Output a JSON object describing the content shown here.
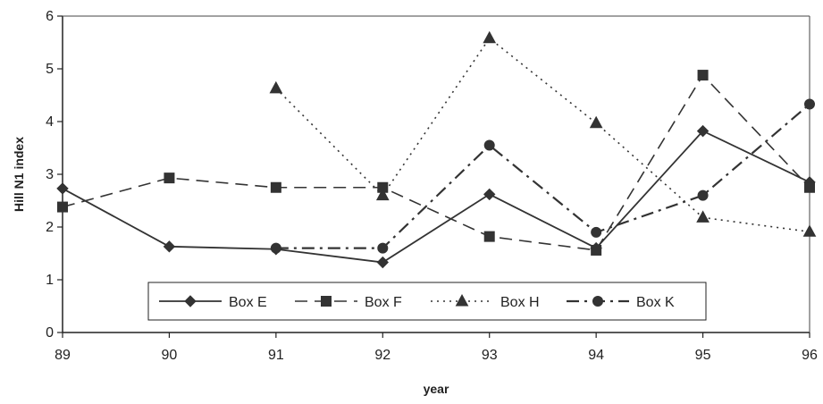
{
  "chart_data": {
    "type": "line",
    "title": "",
    "xlabel": "year",
    "ylabel": "Hill N1 index",
    "x": [
      "89",
      "90",
      "91",
      "92",
      "93",
      "94",
      "95",
      "96"
    ],
    "ylim": [
      0,
      6
    ],
    "yticks": [
      "0",
      "1",
      "2",
      "3",
      "4",
      "5",
      "6"
    ],
    "grid": false,
    "legend_position": "bottom-center",
    "series": [
      {
        "name": "Box E",
        "marker": "diamond",
        "line_style": "solid",
        "values": [
          2.73,
          1.63,
          1.58,
          1.33,
          2.62,
          1.6,
          3.82,
          2.85
        ]
      },
      {
        "name": "Box F",
        "marker": "square",
        "line_style": "dashed",
        "values": [
          2.38,
          2.93,
          2.75,
          2.75,
          1.82,
          1.56,
          4.88,
          2.75
        ]
      },
      {
        "name": "Box H",
        "marker": "triangle",
        "line_style": "dotted",
        "values": [
          null,
          null,
          4.63,
          2.6,
          5.58,
          3.97,
          2.18,
          1.91
        ]
      },
      {
        "name": "Box K",
        "marker": "circle",
        "line_style": "dashdot",
        "values": [
          null,
          null,
          1.6,
          1.6,
          3.55,
          1.9,
          2.6,
          4.33
        ]
      }
    ]
  }
}
